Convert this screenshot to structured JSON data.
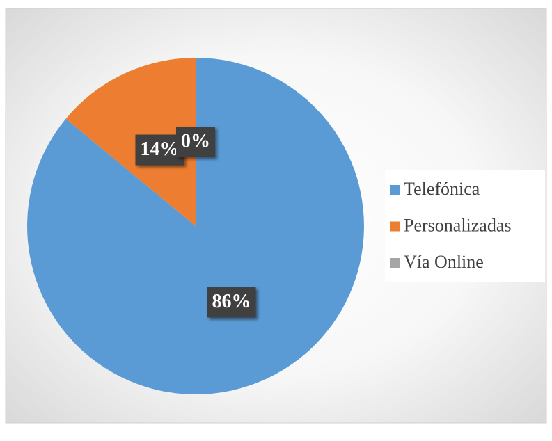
{
  "chart_data": {
    "type": "pie",
    "categories": [
      "Telefónica",
      "Personalizadas",
      "Vía Online"
    ],
    "values": [
      86,
      14,
      0
    ],
    "value_labels": [
      "86%",
      "14%",
      "0%"
    ],
    "colors": [
      "#5b9bd5",
      "#ed7d31",
      "#a5a5a5"
    ],
    "legend": "right"
  }
}
